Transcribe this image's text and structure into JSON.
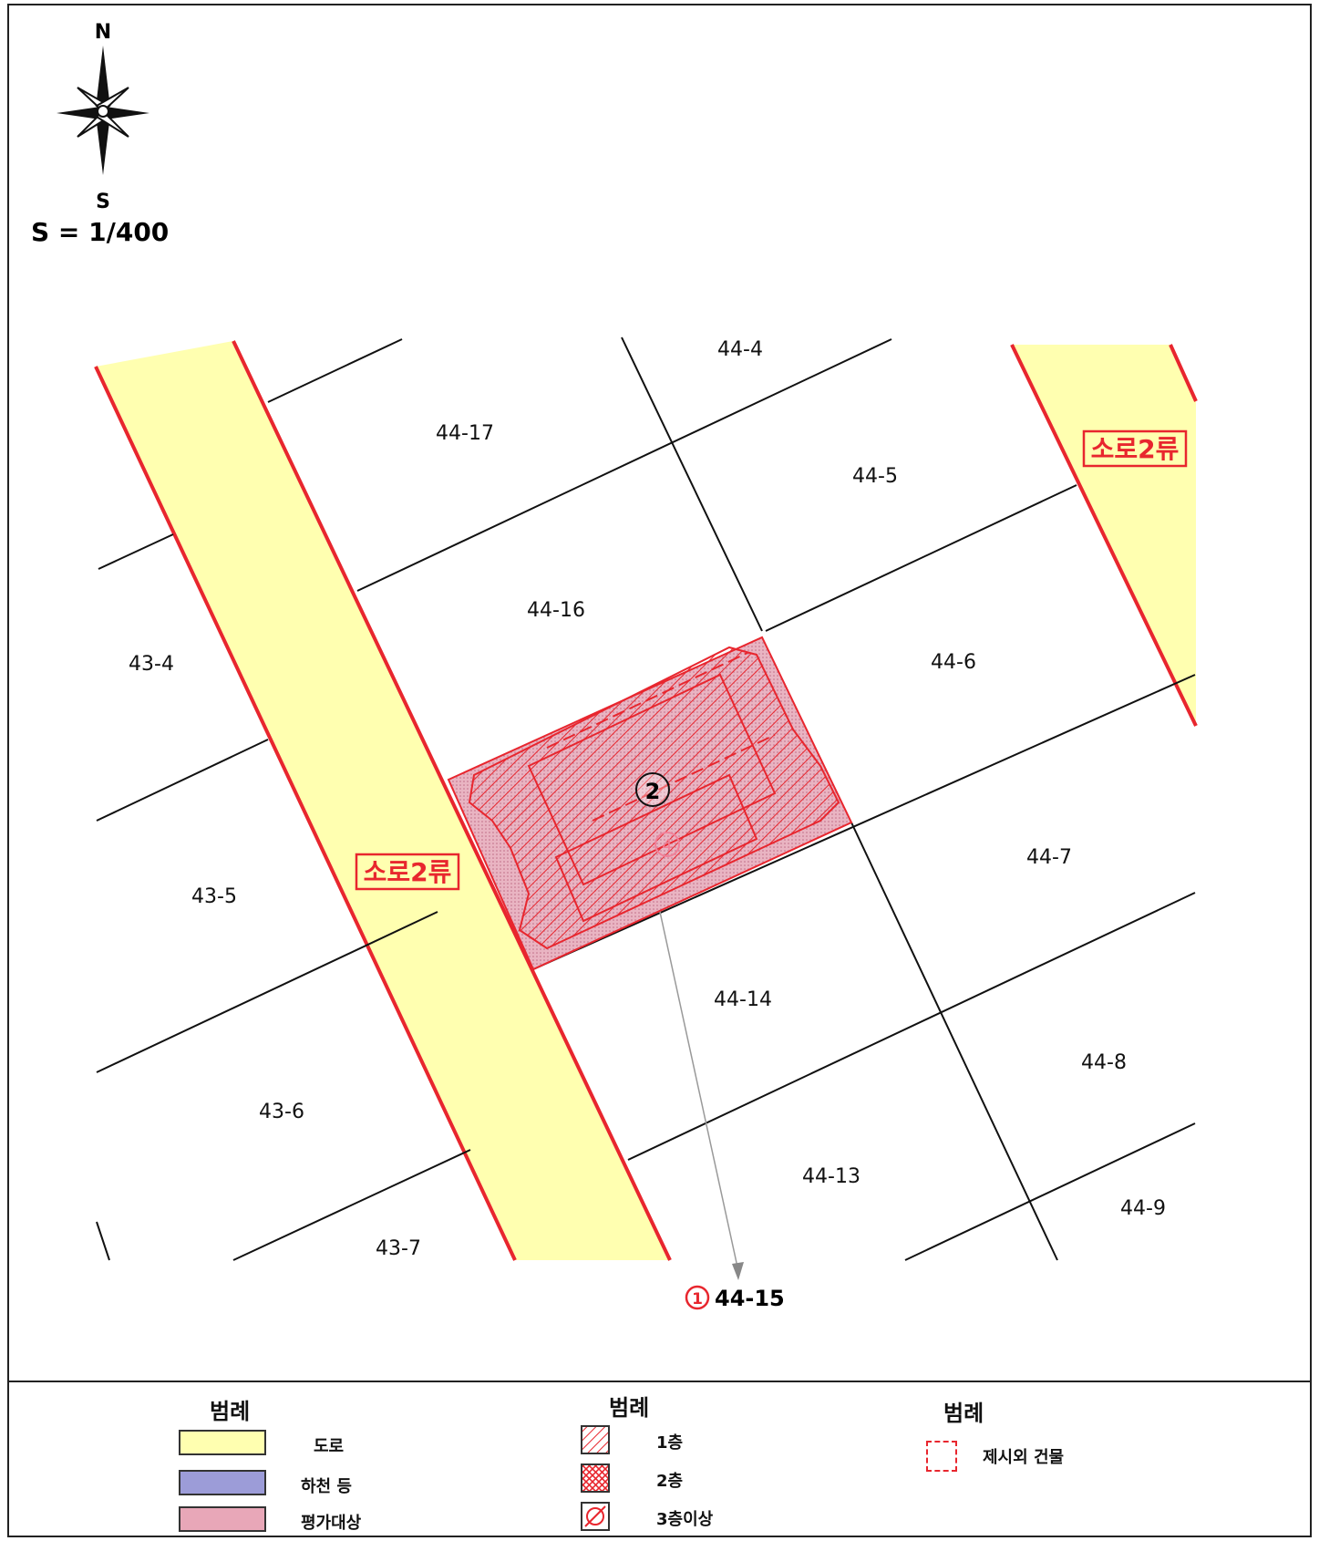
{
  "compass": {
    "north": "N",
    "south": "S",
    "icon": "compass-rose-icon"
  },
  "scale": "S = 1/400",
  "roads": {
    "left_label": "소로2류",
    "right_label": "소로2류"
  },
  "parcels": {
    "p44_4": "44-4",
    "p44_17": "44-17",
    "p44_5": "44-5",
    "p44_16": "44-16",
    "p43_4": "43-4",
    "p44_6": "44-6",
    "p43_5": "43-5",
    "p44_7": "44-7",
    "p44_14": "44-14",
    "p44_8": "44-8",
    "p43_6": "43-6",
    "p44_13": "44-13",
    "p44_9": "44-9",
    "p43_7": "43-7"
  },
  "subject": {
    "building_no": "2",
    "inner_no": "4",
    "callout_no": "1",
    "callout_parcel": "44-15"
  },
  "legend": {
    "col1": {
      "title": "범례",
      "items": [
        "도로",
        "하천 등",
        "평가대상"
      ]
    },
    "col2": {
      "title": "범례",
      "items": [
        "1층",
        "2층",
        "3층이상"
      ]
    },
    "col3": {
      "title": "범례",
      "items": [
        "제시외 건물"
      ]
    }
  },
  "colors": {
    "road_fill": "#FFFFB0",
    "road_edge": "#E8262E",
    "subject_fill": "#E8A7B8",
    "river_fill": "#9C9CD8",
    "accent_red": "#E8262E"
  }
}
